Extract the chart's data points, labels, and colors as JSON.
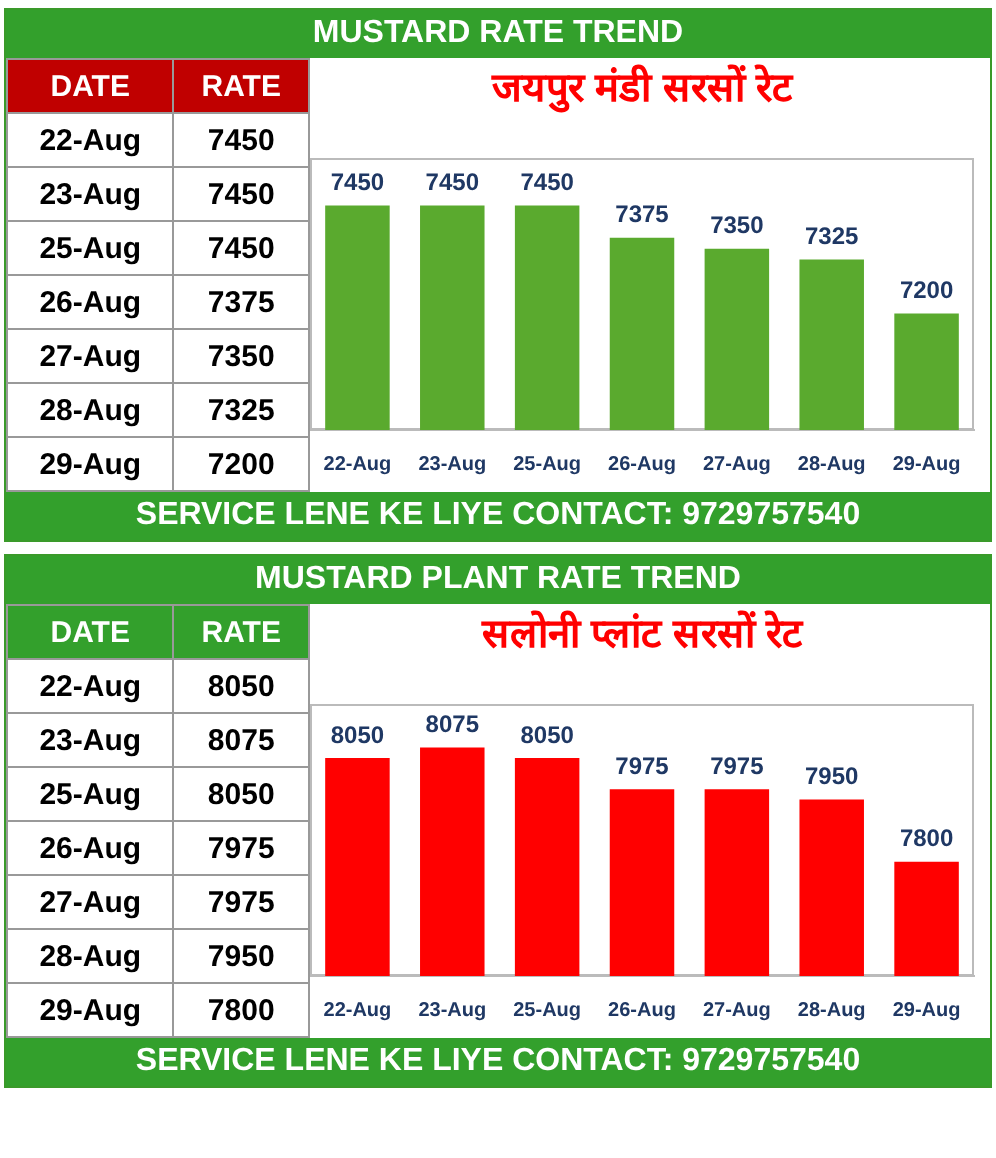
{
  "chart_data": [
    {
      "type": "heatmap",
      "ylabel": "DATE",
      "categories": [
        "RATE"
      ],
      "y_categories": [
        "22-Aug",
        "23-Aug",
        "25-Aug",
        "26-Aug",
        "27-Aug",
        "28-Aug",
        "29-Aug"
      ],
      "cells": [
        [
          7450
        ],
        [
          7450
        ],
        [
          7450
        ],
        [
          7375
        ],
        [
          7350
        ],
        [
          7325
        ],
        [
          7200
        ]
      ],
      "data_labels": true
    },
    {
      "type": "bar",
      "title": "MUSTARD RATE TREND",
      "subtitle": "जयपुर मंडी सरसों रेट",
      "categories": [
        "22-Aug",
        "23-Aug",
        "25-Aug",
        "26-Aug",
        "27-Aug",
        "28-Aug",
        "29-Aug"
      ],
      "values": [
        7450,
        7450,
        7450,
        7375,
        7350,
        7325,
        7200
      ],
      "color": "#5aaa2e",
      "data_labels": true,
      "ylim": [
        6930,
        7560
      ],
      "tick_labels": "x",
      "annotations": [
        "SERVICE LENE KE LIYE CONTACT: 9729757540"
      ]
    },
    {
      "type": "heatmap",
      "ylabel": "DATE",
      "categories": [
        "RATE"
      ],
      "y_categories": [
        "22-Aug",
        "23-Aug",
        "25-Aug",
        "26-Aug",
        "27-Aug",
        "28-Aug",
        "29-Aug"
      ],
      "cells": [
        [
          8050
        ],
        [
          8075
        ],
        [
          8050
        ],
        [
          7975
        ],
        [
          7975
        ],
        [
          7950
        ],
        [
          7800
        ]
      ],
      "data_labels": true
    },
    {
      "type": "bar",
      "title": "MUSTARD PLANT RATE TREND",
      "subtitle": "सलोनी प्लांट सरसों रेट",
      "categories": [
        "22-Aug",
        "23-Aug",
        "25-Aug",
        "26-Aug",
        "27-Aug",
        "28-Aug",
        "29-Aug"
      ],
      "values": [
        8050,
        8075,
        8050,
        7975,
        7975,
        7950,
        7800
      ],
      "color": "#ff0000",
      "data_labels": true,
      "ylim": [
        7525,
        8180
      ],
      "tick_labels": "x",
      "annotations": [
        "SERVICE LENE KE LIYE CONTACT: 9729757540"
      ]
    }
  ]
}
